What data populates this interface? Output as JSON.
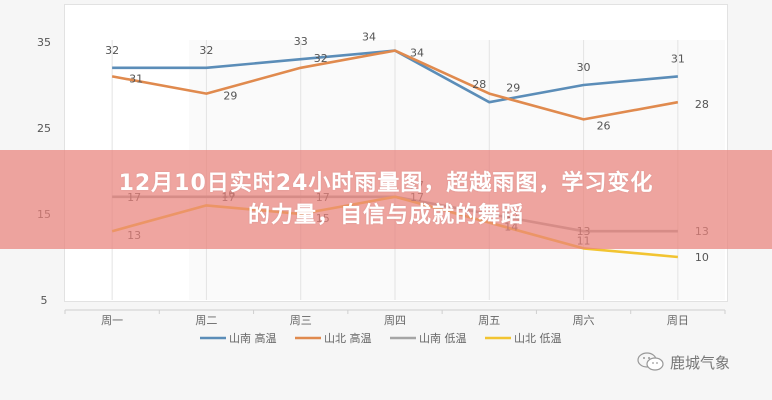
{
  "title": {
    "line1": "12月10日实时24小时雨量图，超越雨图，学习变化",
    "line2": "的力量，自信与成就的舞蹈"
  },
  "watermark": {
    "icon": "wechat-icon",
    "text": "鹿城气象"
  },
  "colors": {
    "south_high": "#5b8db8",
    "north_high": "#e08a4e",
    "south_low": "#a5a5a5",
    "north_low": "#f2c431",
    "banner": "#e9827c"
  },
  "chart_data": {
    "type": "line",
    "title": "",
    "xlabel": "",
    "ylabel": "",
    "ylim": [
      5,
      35
    ],
    "yticks": [
      5,
      15,
      25,
      35
    ],
    "grid": "vertical",
    "legend_position": "bottom",
    "categories": [
      "周一",
      "周二",
      "周三",
      "周四",
      "周五",
      "周六",
      "周日"
    ],
    "series": [
      {
        "name": "山南 高温",
        "values": [
          32,
          32,
          33,
          34,
          28,
          30,
          31
        ]
      },
      {
        "name": "山北 高温",
        "values": [
          31,
          29,
          32,
          34,
          29,
          26,
          28
        ]
      },
      {
        "name": "山南 低温",
        "values": [
          17,
          17,
          17,
          17,
          15,
          13,
          13
        ]
      },
      {
        "name": "山北 低温",
        "values": [
          13,
          16,
          15,
          17,
          14,
          11,
          10
        ]
      }
    ]
  }
}
